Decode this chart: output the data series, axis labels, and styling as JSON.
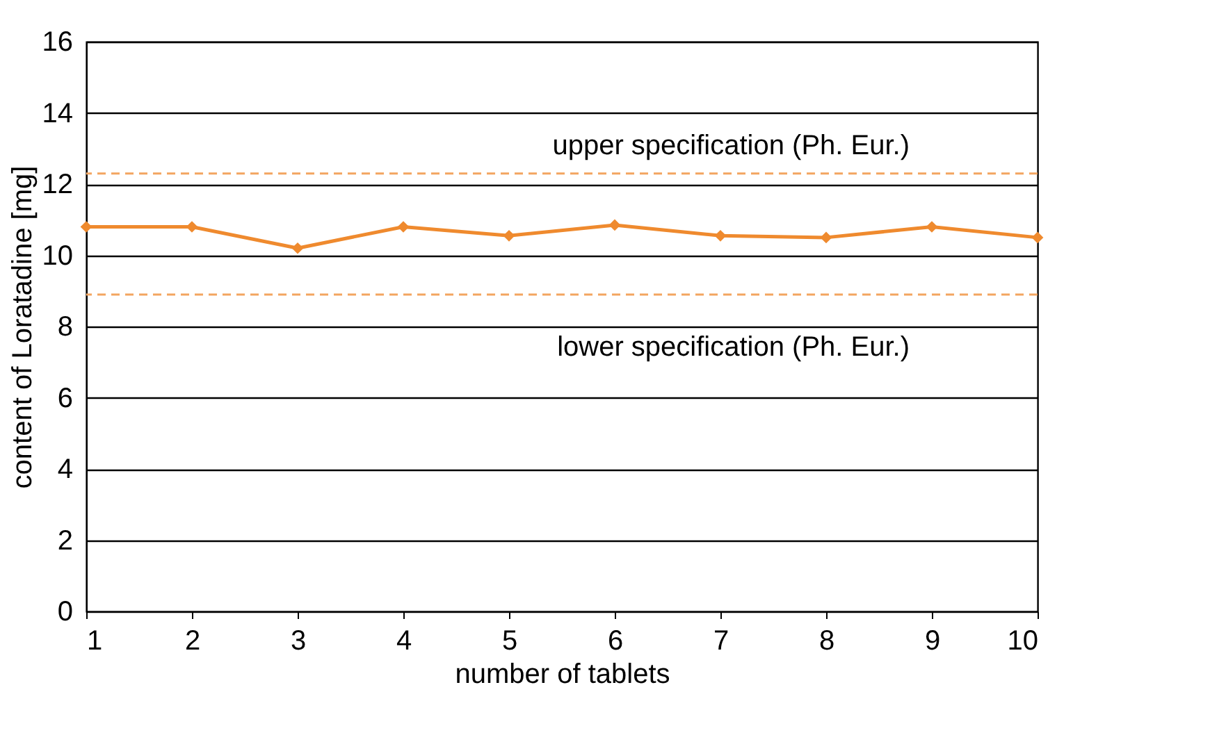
{
  "chart_data": {
    "type": "line",
    "xlabel": "number of tablets",
    "ylabel": "content of Loratadine [mg]",
    "x": [
      1,
      2,
      3,
      4,
      5,
      6,
      7,
      8,
      9,
      10
    ],
    "series": [
      {
        "color": "#ef8a2e",
        "values": [
          10.8,
          10.8,
          10.2,
          10.8,
          10.55,
          10.85,
          10.55,
          10.5,
          10.8,
          10.5
        ]
      }
    ],
    "xlim": [
      1,
      10
    ],
    "xticks": [
      1,
      2,
      3,
      4,
      5,
      6,
      7,
      8,
      9,
      10
    ],
    "ylim": [
      0,
      16
    ],
    "yticks": [
      0,
      2,
      4,
      6,
      8,
      10,
      12,
      14,
      16
    ],
    "ref_lines": [
      {
        "axis": "y",
        "value": 12.3,
        "label": "upper specification (Ph. Eur.)",
        "color": "#f3a560",
        "line_style": "dashed"
      },
      {
        "axis": "y",
        "value": 8.9,
        "label": "lower specification (Ph. Eur.)",
        "color": "#f3a560",
        "line_style": "dashed"
      }
    ],
    "grid": "y",
    "marker": "diamond",
    "line_style": "solid"
  }
}
